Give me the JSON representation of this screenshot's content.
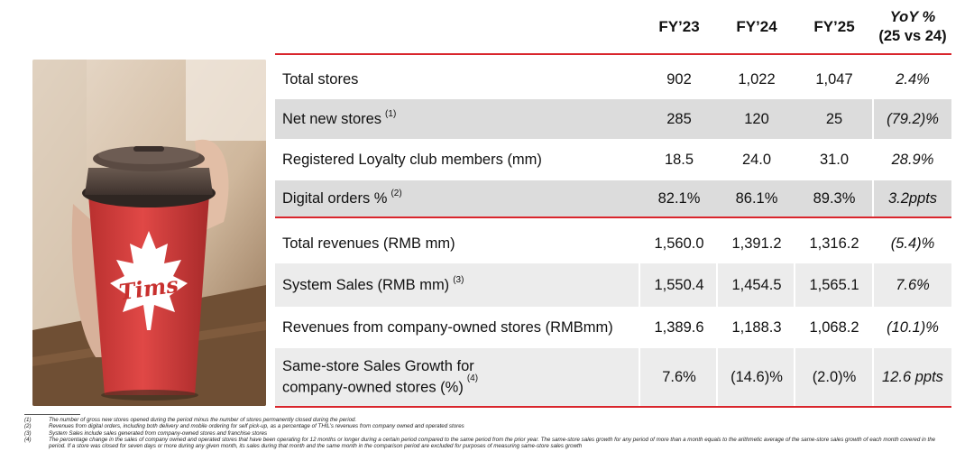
{
  "header": {
    "cols": [
      "FY’23",
      "FY’24",
      "FY’25"
    ],
    "yoy_line1": "YoY %",
    "yoy_line2": "(25 vs 24)"
  },
  "rows": [
    {
      "label": "Total stores",
      "note": "",
      "v": [
        "902",
        "1,022",
        "1,047"
      ],
      "yoy": "2.4%",
      "shaded": false
    },
    {
      "label": "Net new stores",
      "note": "(1)",
      "v": [
        "285",
        "120",
        "25"
      ],
      "yoy": "(79.2)%",
      "shaded": true
    },
    {
      "label": "Registered Loyalty club members (mm)",
      "note": "",
      "v": [
        "18.5",
        "24.0",
        "31.0"
      ],
      "yoy": "28.9%",
      "shaded": false
    },
    {
      "label": "Digital orders %",
      "note": "(2)",
      "v": [
        "82.1%",
        "86.1%",
        "89.3%"
      ],
      "yoy": "3.2ppts",
      "shaded": true
    },
    {
      "label": "Total revenues (RMB mm)",
      "note": "",
      "v": [
        "1,560.0",
        "1,391.2",
        "1,316.2"
      ],
      "yoy": "(5.4)%",
      "shaded": false
    },
    {
      "label": "System Sales (RMB mm)",
      "note": "(3)",
      "v": [
        "1,550.4",
        "1,454.5",
        "1,565.1"
      ],
      "yoy": "7.6%",
      "shaded": true
    },
    {
      "label": "Revenues from company-owned stores (RMBmm)",
      "note": "",
      "v": [
        "1,389.6",
        "1,188.3",
        "1,068.2"
      ],
      "yoy": "(10.1)%",
      "shaded": false
    },
    {
      "label_line1": "Same-store Sales Growth for",
      "label_line2": "company-owned stores (%)",
      "note": "(4)",
      "v": [
        "7.6%",
        "(14.6)%",
        "(2.0)%"
      ],
      "yoy": "12.6 ppts",
      "shaded": true
    }
  ],
  "photo": {
    "cup_logo_text": "Tims"
  },
  "footnotes": [
    {
      "num": "(1)",
      "text": "The number of gross new stores opened during the period minus the number of stores permanently closed during the period."
    },
    {
      "num": "(2)",
      "text": "Revenues from digital orders, including both delivery and mobile ordering for self pick-up, as a percentage of THIL’s revenues from company owned and operated stores"
    },
    {
      "num": "(3)",
      "text": "System Sales include sales generated from company-owned  stores and franchise stores"
    },
    {
      "num": "(4)",
      "text": "The percentage change in the sales of company owned and operated stores that have been operating for 12 months or longer during a certain period compared to the same period from the prior year. The same-store sales growth for any period of more than a month equals to the arithmetic average of the same-store sales growth of each month covered in the period. If a store was closed for seven days or more during any given month, its sales during that month and the same month in the comparison period are excluded for purposes of measuring same-store sales growth"
    }
  ],
  "colors": {
    "accent_red": "#d9252c",
    "shade": "#dcdcdc"
  }
}
